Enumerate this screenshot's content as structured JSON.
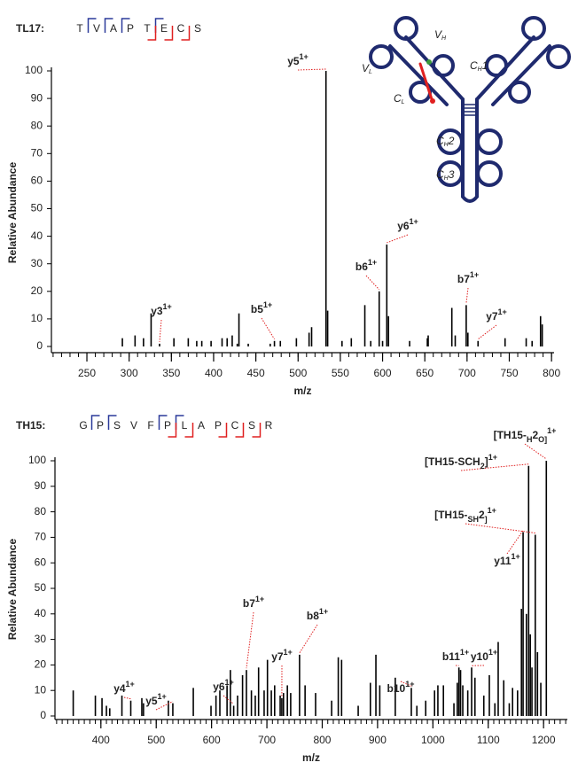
{
  "chart_data": [
    {
      "type": "stem",
      "title": "TL17:",
      "sequence": [
        {
          "residue": "T",
          "color": "#333333"
        },
        {
          "residue": "V",
          "color": "#333333"
        },
        {
          "residue": "A",
          "color": "#333333"
        },
        {
          "residue": "P",
          "color": "#333333"
        },
        {
          "residue": "T",
          "color": "#333333"
        },
        {
          "residue": "E",
          "color": "#333333"
        },
        {
          "residue": "C",
          "color": "#e02020"
        },
        {
          "residue": "S",
          "color": "#333333"
        }
      ],
      "x_label": "m/z",
      "y_label": "Relative Abundance",
      "color": "#000000",
      "x": [
        292,
        307,
        317,
        326,
        336,
        353,
        370,
        380,
        386,
        397,
        410,
        416,
        422,
        428,
        430,
        441,
        467,
        472,
        479,
        498,
        513,
        516,
        533,
        535,
        552,
        563,
        579,
        586,
        596,
        600,
        605,
        607,
        632,
        653,
        654,
        682,
        686,
        699,
        701,
        713,
        745,
        770,
        777,
        787,
        789
      ],
      "values": [
        3,
        4,
        3,
        12,
        1,
        3,
        3,
        2,
        2,
        2,
        3,
        3,
        4,
        1,
        12,
        1,
        1,
        2,
        2,
        3,
        5,
        7,
        100,
        13,
        2,
        3,
        15,
        2,
        20,
        2,
        37,
        11,
        2,
        3,
        4,
        14,
        4,
        15,
        5,
        2,
        3,
        3,
        2,
        11,
        8
      ],
      "xlim": [
        208,
        803
      ],
      "ylim": [
        0,
        100
      ],
      "xticks": [
        250,
        300,
        350,
        400,
        450,
        500,
        550,
        600,
        650,
        700,
        750,
        800
      ],
      "minor_tick_step": 10,
      "yticks": [
        0,
        10,
        20,
        30,
        40,
        50,
        60,
        70,
        80,
        90,
        100
      ],
      "annotation_color": "#e02020",
      "annotations": [
        {
          "text": [
            "y3"
          ],
          "sup": "1+",
          "x": 336
        },
        {
          "text": [
            "b5"
          ],
          "sup": "1+",
          "x": 472
        },
        {
          "text": [
            "y5"
          ],
          "sup": "1+",
          "x": 533
        },
        {
          "text": [
            "b6"
          ],
          "sup": "1+",
          "x": 596
        },
        {
          "text": [
            "y6"
          ],
          "sup": "1+",
          "x": 605
        },
        {
          "text": [
            "b7"
          ],
          "sup": "1+",
          "x": 699
        },
        {
          "text": [
            "y7"
          ],
          "sup": "1+",
          "x": 713
        }
      ]
    },
    {
      "type": "stem",
      "title": "TH15:",
      "sequence": [
        {
          "residue": "G",
          "color": "#333333"
        },
        {
          "residue": "P",
          "color": "#333333"
        },
        {
          "residue": "S",
          "color": "#333333"
        },
        {
          "residue": "V",
          "color": "#333333"
        },
        {
          "residue": "F",
          "color": "#333333"
        },
        {
          "residue": "P",
          "color": "#333333"
        },
        {
          "residue": "L",
          "color": "#333333"
        },
        {
          "residue": "A",
          "color": "#333333"
        },
        {
          "residue": "P",
          "color": "#333333"
        },
        {
          "residue": "C",
          "color": "#e02020"
        },
        {
          "residue": "S",
          "color": "#333333"
        },
        {
          "residue": "R",
          "color": "#333333"
        }
      ],
      "x_label": "m/z",
      "y_label": "Relative Abundance",
      "color": "#000000",
      "x": [
        350,
        390,
        402,
        410,
        416,
        438,
        454,
        474,
        477,
        522,
        530,
        567,
        599,
        608,
        615,
        628,
        634,
        640,
        647,
        656,
        663,
        672,
        679,
        685,
        695,
        701,
        708,
        714,
        724,
        727,
        730,
        737,
        743,
        759,
        769,
        788,
        817,
        829,
        835,
        865,
        887,
        897,
        904,
        932,
        961,
        971,
        987,
        1003,
        1009,
        1019,
        1038,
        1044,
        1047,
        1050,
        1054,
        1063,
        1070,
        1076,
        1092,
        1102,
        1112,
        1118,
        1128,
        1138,
        1144,
        1153,
        1160,
        1163,
        1169,
        1173,
        1176,
        1179,
        1185,
        1189,
        1195,
        1205
      ],
      "values": [
        10,
        8,
        7,
        4,
        3,
        8,
        6,
        7,
        5,
        6,
        5,
        11,
        4,
        8,
        10,
        12,
        18,
        4,
        8,
        16,
        18,
        10,
        8,
        19,
        10,
        22,
        10,
        12,
        8,
        7,
        9,
        12,
        9,
        24,
        12,
        9,
        6,
        23,
        22,
        4,
        13,
        24,
        12,
        15,
        11,
        4,
        6,
        10,
        12,
        12,
        5,
        13,
        19,
        18,
        12,
        10,
        19,
        15,
        8,
        16,
        5,
        29,
        14,
        5,
        11,
        10,
        42,
        72,
        40,
        98,
        32,
        19,
        71,
        25,
        13,
        100
      ],
      "xlim": [
        317,
        1243
      ],
      "ylim": [
        0,
        100
      ],
      "xticks": [
        400,
        500,
        600,
        700,
        800,
        900,
        1000,
        1100,
        1200
      ],
      "minor_tick_step": 10,
      "yticks": [
        0,
        10,
        20,
        30,
        40,
        50,
        60,
        70,
        80,
        90,
        100
      ],
      "annotation_color": "#e02020",
      "annotations": [
        {
          "text": [
            "y4"
          ],
          "sup": "1+",
          "x": 454
        },
        {
          "text": [
            "y5"
          ],
          "sup": "1+",
          "x": 530
        },
        {
          "text": [
            "y6"
          ],
          "sup": "1+",
          "x": 640
        },
        {
          "text": [
            "b7"
          ],
          "sup": "1+",
          "x": 663
        },
        {
          "text": [
            "y7"
          ],
          "sup": "1+",
          "x": 727
        },
        {
          "text": [
            "b8"
          ],
          "sup": "1+",
          "x": 759
        },
        {
          "text": [
            "b10"
          ],
          "sup": "1+",
          "x": 961
        },
        {
          "text": [
            "b11"
          ],
          "sup": "1+",
          "x": 1047
        },
        {
          "text": [
            "y10"
          ],
          "sup": "1+",
          "x": 1070
        },
        {
          "text": [
            "y11"
          ],
          "sup": "1+",
          "x": 1163
        },
        {
          "text": [
            "[TH15-",
            "SH",
            "2",
            "]"
          ],
          "sup": "1+",
          "x": 1185
        },
        {
          "text": [
            "[TH15-SCH",
            "2",
            "]"
          ],
          "sup": "1+",
          "x": 1173
        },
        {
          "text": [
            "[TH15-",
            "H",
            "2",
            "O]"
          ],
          "sup": "1+",
          "x": 1205
        }
      ]
    }
  ],
  "diagram": {
    "labels": [
      {
        "text": [
          "V",
          "H"
        ]
      },
      {
        "text": [
          "V",
          "L"
        ]
      },
      {
        "text": [
          "C",
          "H",
          "1"
        ]
      },
      {
        "text": [
          "C",
          "L"
        ]
      },
      {
        "text": [
          "C",
          "H",
          "2"
        ]
      },
      {
        "text": [
          "C",
          "H",
          "3"
        ]
      }
    ]
  }
}
